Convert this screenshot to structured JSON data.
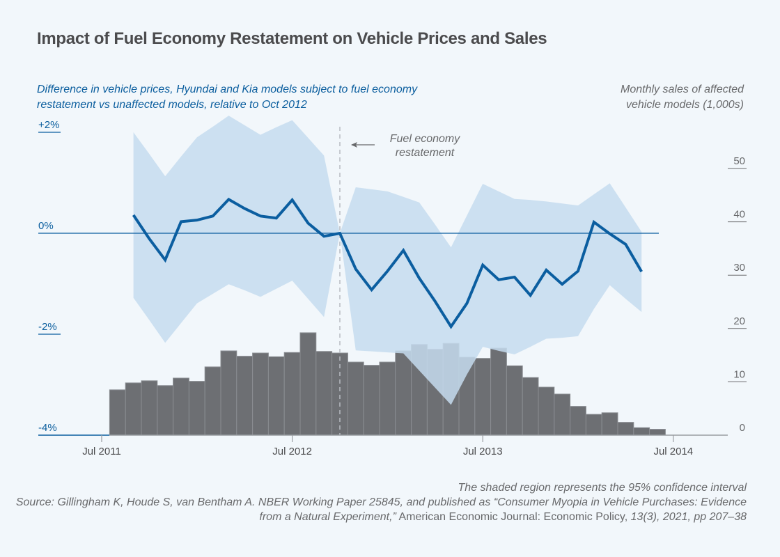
{
  "title": "Impact of Fuel Economy Restatement on Vehicle Prices and Sales",
  "left_axis_title": "Difference in vehicle prices, Hyundai and Kia models subject to fuel economy restatement vs unaffected models, relative to Oct 2012",
  "right_axis_title": "Monthly sales of affected vehicle models (1,000s)",
  "annotation": {
    "line1": "Fuel economy",
    "line2": "restatement"
  },
  "notes": {
    "ci": "The shaded region represents the 95% confidence interval",
    "source1_italic": "Source: Gillingham K, Houde S, van Bentham A. NBER Working Paper 25845, and published as “Consumer Myopia in Vehicle Purchases: Evidence from a Natural Experiment,”",
    "source2_plain": " American Economic Journal: Economic Policy, ",
    "source3_italic": "13(3), 2021, pp 207–38"
  },
  "colors": {
    "line": "#0b5ea0",
    "band": "#c6dcee",
    "bars": "#6d6f73",
    "background": "#f2f7fb",
    "restatement_line": "#b8bcc2"
  },
  "chart_data": {
    "type": "line+bar",
    "x_ticks": [
      "Jul 2011",
      "Jul 2012",
      "Jul 2013",
      "Jul 2014"
    ],
    "left_axis": {
      "unit": "%",
      "ticks": [
        "+2%",
        "0%",
        "-2%",
        "-4%"
      ],
      "tick_values": [
        2,
        0,
        -2,
        -4
      ],
      "range": [
        -4,
        2.4
      ]
    },
    "right_axis": {
      "ticks": [
        "0",
        "10",
        "20",
        "30",
        "40",
        "50"
      ],
      "tick_values": [
        0,
        10,
        20,
        30,
        40,
        50
      ],
      "range": [
        0,
        57
      ]
    },
    "restatement_month": "Oct 2012",
    "price_difference": {
      "months": [
        "Sep 2011",
        "Oct 2011",
        "Nov 2011",
        "Dec 2011",
        "Jan 2012",
        "Feb 2012",
        "Mar 2012",
        "Apr 2012",
        "May 2012",
        "Jun 2012",
        "Jul 2012",
        "Aug 2012",
        "Sep 2012",
        "Oct 2012",
        "Nov 2012",
        "Dec 2012",
        "Jan 2013",
        "Feb 2013",
        "Mar 2013",
        "Apr 2013",
        "May 2013",
        "Jun 2013",
        "Jul 2013",
        "Aug 2013",
        "Sep 2013",
        "Oct 2013",
        "Nov 2013",
        "Dec 2013",
        "Jan 2014",
        "Feb 2014",
        "Mar 2014",
        "Apr 2014",
        "May 2014"
      ],
      "values": [
        0.36,
        -0.11,
        -0.53,
        0.23,
        0.26,
        0.34,
        0.67,
        0.49,
        0.34,
        0.3,
        0.66,
        0.2,
        -0.06,
        0.0,
        -0.71,
        -1.12,
        -0.75,
        -0.34,
        -0.89,
        -1.35,
        -1.85,
        -1.39,
        -0.63,
        -0.92,
        -0.87,
        -1.23,
        -0.73,
        -1.01,
        -0.75,
        0.22,
        -0.01,
        -0.22,
        -0.76
      ],
      "ci_upper": [
        2.0,
        1.57,
        1.13,
        1.52,
        1.9,
        2.11,
        2.33,
        2.14,
        1.95,
        2.1,
        2.24,
        1.89,
        1.54,
        0.0,
        0.91,
        0.87,
        0.83,
        0.72,
        0.61,
        0.17,
        -0.28,
        0.35,
        0.98,
        0.83,
        0.68,
        0.66,
        0.63,
        0.59,
        0.55,
        0.77,
        0.99,
        0.51,
        0.03
      ],
      "ci_lower": [
        -1.28,
        -1.72,
        -2.17,
        -1.78,
        -1.39,
        -1.2,
        -1.01,
        -1.13,
        -1.26,
        -1.1,
        -0.94,
        -1.3,
        -1.66,
        0.0,
        -2.32,
        -2.34,
        -2.36,
        -2.38,
        -2.72,
        -3.06,
        -3.4,
        -2.8,
        -2.25,
        -2.33,
        -2.4,
        -2.25,
        -2.09,
        -2.07,
        -2.04,
        -1.5,
        -1.03,
        -1.3,
        -1.56
      ]
    },
    "monthly_sales": {
      "months": [
        "Aug 2011",
        "Sep 2011",
        "Oct 2011",
        "Nov 2011",
        "Dec 2011",
        "Jan 2012",
        "Feb 2012",
        "Mar 2012",
        "Apr 2012",
        "May 2012",
        "Jun 2012",
        "Jul 2012",
        "Aug 2012",
        "Sep 2012",
        "Oct 2012",
        "Nov 2012",
        "Dec 2012",
        "Jan 2013",
        "Feb 2013",
        "Mar 2013",
        "Apr 2013",
        "May 2013",
        "Jun 2013",
        "Jul 2013",
        "Aug 2013",
        "Sep 2013",
        "Oct 2013",
        "Nov 2013",
        "Dec 2013",
        "Jan 2014",
        "Feb 2014",
        "Mar 2014",
        "Apr 2014",
        "May 2014",
        "Jun 2014"
      ],
      "values": [
        8.5,
        9.8,
        10.2,
        9.3,
        10.7,
        10.1,
        12.8,
        15.8,
        14.8,
        15.4,
        14.7,
        15.5,
        19.2,
        15.7,
        15.4,
        13.7,
        13.1,
        13.7,
        15.8,
        17.0,
        16.1,
        17.2,
        14.6,
        14.4,
        16.3,
        13.0,
        10.8,
        9.0,
        7.7,
        5.4,
        3.9,
        4.2,
        2.4,
        1.4,
        1.1
      ]
    }
  }
}
